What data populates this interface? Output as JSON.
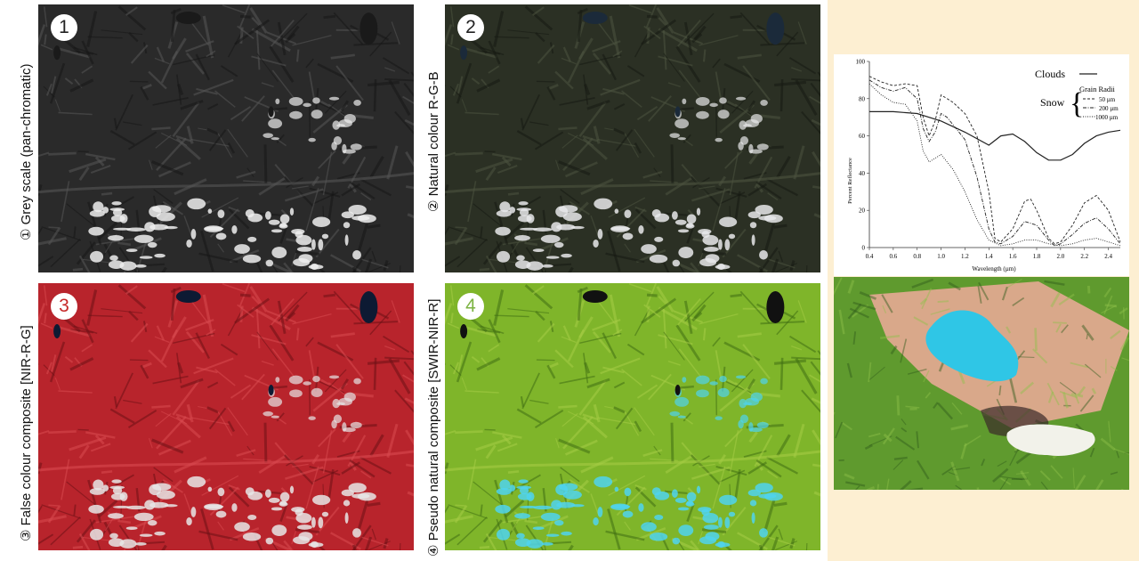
{
  "panels": [
    {
      "number": "1",
      "label": "① Grey scale (pan-chromatic)",
      "number_color": "#222222",
      "palette": {
        "base": "#2a2a2a",
        "dark": "#151515",
        "light": "#555555",
        "snow": "#eeeeee",
        "lake": "#1a1a1a"
      }
    },
    {
      "number": "2",
      "label": "② Natural colour R-G-B",
      "number_color": "#222222",
      "palette": {
        "base": "#2b3024",
        "dark": "#161a12",
        "light": "#4d5340",
        "snow": "#e8e8ea",
        "lake": "#1b2a3a"
      }
    },
    {
      "number": "3",
      "label": "③ False colour composite [NIR-R-G]",
      "number_color": "#c62828",
      "palette": {
        "base": "#b8242c",
        "dark": "#6e1016",
        "light": "#d94a50",
        "snow": "#e6e6e6",
        "lake": "#0d1a33"
      }
    },
    {
      "number": "4",
      "label": "④ Pseudo natural composite [SWIR-NIR-R]",
      "number_color": "#7cb342",
      "palette": {
        "base": "#7fb52a",
        "dark": "#3f6e12",
        "light": "#a5cc45",
        "snow": "#4fd3ee",
        "lake": "#111111"
      }
    }
  ],
  "detail_image": {
    "palette": {
      "base": "#5f9a2e",
      "dark": "#2f5a1a",
      "light": "#d9a88a",
      "snow": "#2fc6e6",
      "cloud": "#f2f2ea"
    }
  },
  "chart_data": {
    "type": "line",
    "xlabel": "Wavelength (µm)",
    "ylabel": "Percent Reflectance",
    "xlim": [
      0.4,
      2.5
    ],
    "ylim": [
      0,
      100
    ],
    "x_ticks": [
      "0.4",
      "0.6",
      "0.8",
      "1.0",
      "1.2",
      "1.4",
      "1.6",
      "1.8",
      "2.0",
      "2.2",
      "2.4"
    ],
    "y_ticks": [
      "0",
      "20",
      "40",
      "60",
      "80",
      "100"
    ],
    "legend": {
      "clouds": "Clouds",
      "snow": "Snow",
      "grain_title": "Grain Radii",
      "grain_items": [
        "50 µm",
        "200 µm",
        "1000 µm"
      ]
    },
    "series": [
      {
        "name": "Clouds",
        "style": "solid",
        "x": [
          0.4,
          0.6,
          0.8,
          1.0,
          1.2,
          1.4,
          1.5,
          1.6,
          1.7,
          1.8,
          1.9,
          2.0,
          2.1,
          2.2,
          2.3,
          2.4,
          2.5
        ],
        "y": [
          73,
          73,
          72,
          68,
          62,
          55,
          60,
          61,
          57,
          51,
          47,
          47,
          50,
          56,
          60,
          62,
          63
        ]
      },
      {
        "name": "50 µm",
        "style": "dashed",
        "x": [
          0.4,
          0.5,
          0.6,
          0.7,
          0.8,
          0.85,
          0.9,
          0.95,
          1.0,
          1.05,
          1.1,
          1.2,
          1.3,
          1.4,
          1.45,
          1.5,
          1.6,
          1.7,
          1.75,
          1.8,
          1.9,
          1.95,
          2.0,
          2.1,
          2.2,
          2.3,
          2.4,
          2.5
        ],
        "y": [
          92,
          89,
          87,
          88,
          87,
          70,
          60,
          68,
          82,
          80,
          78,
          72,
          60,
          30,
          5,
          3,
          10,
          25,
          26,
          20,
          5,
          2,
          3,
          12,
          24,
          28,
          20,
          3
        ]
      },
      {
        "name": "200 µm",
        "style": "dashdot",
        "x": [
          0.4,
          0.5,
          0.6,
          0.7,
          0.8,
          0.85,
          0.9,
          0.95,
          1.0,
          1.05,
          1.1,
          1.2,
          1.3,
          1.4,
          1.45,
          1.5,
          1.6,
          1.7,
          1.8,
          1.9,
          1.95,
          2.0,
          2.1,
          2.2,
          2.3,
          2.4,
          2.5
        ],
        "y": [
          90,
          86,
          84,
          86,
          80,
          64,
          57,
          62,
          72,
          70,
          66,
          58,
          38,
          10,
          3,
          2,
          6,
          14,
          12,
          4,
          1,
          2,
          7,
          13,
          16,
          10,
          2
        ]
      },
      {
        "name": "1000 µm",
        "style": "dotted",
        "x": [
          0.4,
          0.5,
          0.6,
          0.7,
          0.8,
          0.85,
          0.9,
          0.95,
          1.0,
          1.1,
          1.2,
          1.3,
          1.4,
          1.5,
          1.6,
          1.7,
          1.8,
          1.9,
          2.0,
          2.1,
          2.2,
          2.3,
          2.4,
          2.5
        ],
        "y": [
          88,
          82,
          78,
          77,
          68,
          52,
          46,
          48,
          50,
          42,
          30,
          15,
          4,
          1,
          2,
          4,
          4,
          2,
          1,
          2,
          4,
          5,
          3,
          1
        ]
      }
    ]
  }
}
